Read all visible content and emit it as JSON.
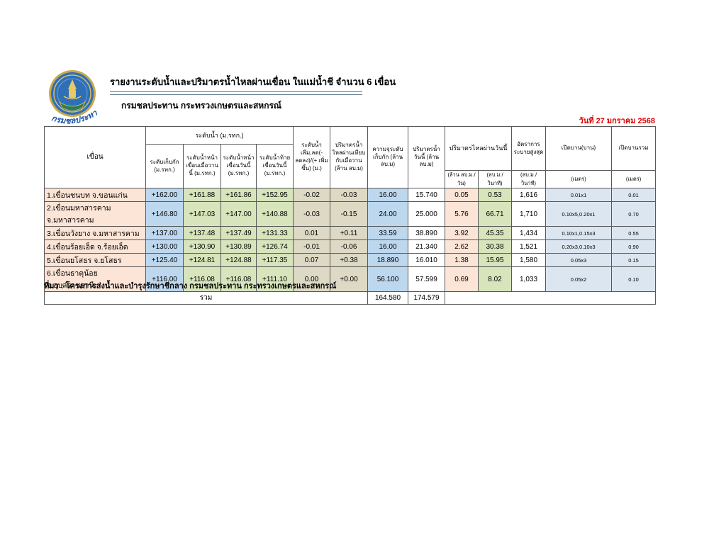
{
  "header": {
    "title": "รายงานระดับน้ำและปริมาตรน้ำไหลผ่านเขื่อน ในแม่น้ำชี จำนวน 6 เขื่อน",
    "subtitle": "กรมชลประทาน กระทรวงเกษตรและสหกรณ์",
    "logo_caption": "กรมชลประทาน",
    "date_line": "วันที่ 27 มกราคม 2568"
  },
  "table": {
    "group_headers": {
      "water_level": "ระดับน้ำ (ม.รทก.)",
      "flow_today": "ปริมาตรไหลผ่านวันนี้"
    },
    "columns": {
      "dam": "เขื่อน",
      "retention_level": "ระดับเก็บกัก (ม.รทก.)",
      "level_front_yesterday": "ระดับน้ำหน้าเขื่อนเมื่อวานนี้ (ม.รทก.)",
      "level_front_today": "ระดับน้ำหน้าเขื่อนวันนี้ (ม.รทก.)",
      "level_tail_today": "ระดับน้ำท้ายเขื่อนวันนี้ (ม.รทก.)",
      "level_change": "ระดับน้ำ เพิ่ม,ลด(-ลดลง)/(+ เพิ่มขึ้น) (ม.)",
      "flow_vs_yesterday": "ปริมาตรน้ำไหลผ่านเทียบกับเมื่อวาน (ล้าน ลบ.ม)",
      "capacity_at_retention": "ความจุระดับเก็บกัก (ล้าน ลบ.ม)",
      "volume_today": "ปริมาตรน้ำวันนี้ (ล้าน ลบ.ม)",
      "max_discharge_rate": "อัตราการระบายสูงสุด",
      "gate_opening": "เปิดบาน(บาน)",
      "gate_opening_total": "เปิดบานรวม"
    },
    "units": {
      "flow_per_day": "(ล้าน ลบ.ม./วัน)",
      "flow_per_sec": "(ลบ.ม./วินาที)",
      "discharge_per_sec": "(ลบ.ม./วินาที)",
      "gate_meters": "(เมตร)",
      "gate_total_meters": "(เมตร)"
    },
    "rows": [
      [
        "1.เขื่อนชนบท จ.ขอนแก่น",
        "+162.00",
        "+161.88",
        "+161.86",
        "+152.95",
        "-0.02",
        "-0.03",
        "16.00",
        "15.740",
        "0.05",
        "0.53",
        "1,616",
        "0.01x1",
        "0.01"
      ],
      [
        "2.เขื่อนมหาสารคาม จ.มหาสารคาม",
        "+146.80",
        "+147.03",
        "+147.00",
        "+140.88",
        "-0.03",
        "-0.15",
        "24.00",
        "25.000",
        "5.76",
        "66.71",
        "1,710",
        "0.10x5,0.20x1",
        "0.70"
      ],
      [
        "3.เขื่อนวังยาง จ.มหาสารคาม",
        "+137.00",
        "+137.48",
        "+137.49",
        "+131.33",
        "0.01",
        "+0.11",
        "33.59",
        "38.890",
        "3.92",
        "45.35",
        "1,434",
        "0.10x1,0.15x3",
        "0.55"
      ],
      [
        "4.เขื่อนร้อยเอ็ด จ.ร้อยเอ็ด",
        "+130.00",
        "+130.90",
        "+130.89",
        "+126.74",
        "-0.01",
        "-0.06",
        "16.00",
        "21.340",
        "2.62",
        "30.38",
        "1,521",
        "0.20x3,0.10x3",
        "0.90"
      ],
      [
        "5.เขื่อนยโสธร จ.ยโสธร",
        "+125.40",
        "+124.81",
        "+124.88",
        "+117.35",
        "0.07",
        "+0.38",
        "18.890",
        "16.010",
        "1.38",
        "15.95",
        "1,580",
        "0.05x3",
        "0.15"
      ],
      [
        "6.เขื่อนธาตุน้อย จ.อุบลราชธานี",
        "+116.00",
        "+116.08",
        "+116.08",
        "+111.10",
        "0.00",
        "+0.00",
        "56.100",
        "57.599",
        "0.69",
        "8.02",
        "1,033",
        "0.05x2",
        "0.10"
      ]
    ],
    "total": {
      "label": "รวม",
      "capacity_total": "164.580",
      "volume_total": "174.579"
    },
    "column_bg": [
      "#fce4d6",
      "#bdd7ee",
      "#d7e4bc",
      "#d7e4bc",
      "#d7e4bc",
      "#ddd9c4",
      "#ddd9c4",
      "#bdd7ee",
      "",
      "#fce4d6",
      "#d7e4bc",
      "",
      "#dce6f1",
      "#dce6f1"
    ]
  },
  "footer": {
    "source": "ที่มา : โครงการส่งน้ำและบำรุงรักษาชีกลาง กรมชลประทาน กระทรวงเกษตรและสหกรณ์"
  },
  "colors": {
    "date_text": "#e00000",
    "cell_border": "#595959",
    "name_column_bg": "#fce4d6",
    "blue_bg": "#bdd7ee",
    "green_bg": "#d7e4bc",
    "tan_bg": "#ddd9c4",
    "light_blue_bg": "#dce6f1",
    "logo_blue": "#2e6fb7",
    "logo_gold": "#c9a84c"
  }
}
